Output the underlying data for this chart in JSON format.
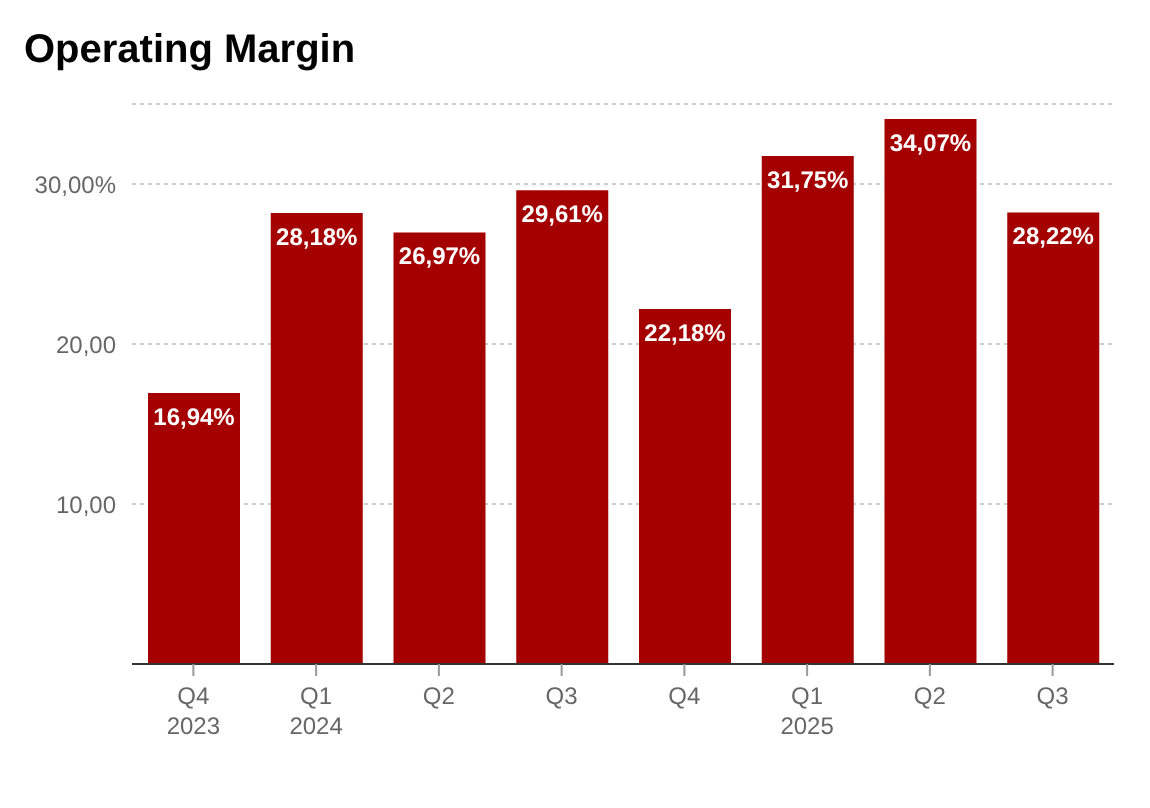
{
  "chart_data": {
    "type": "bar",
    "title": "Operating Margin",
    "categories": [
      "Q4\n2023",
      "Q1\n2024",
      "Q2",
      "Q3",
      "Q4",
      "Q1\n2025",
      "Q2",
      "Q3"
    ],
    "values": [
      16.94,
      28.18,
      26.97,
      29.61,
      22.18,
      31.75,
      34.07,
      28.22
    ],
    "value_labels": [
      "16,94%",
      "28,18%",
      "26,97%",
      "29,61%",
      "22,18%",
      "31,75%",
      "34,07%",
      "28,22%"
    ],
    "color": "#a50000",
    "ylim": [
      0,
      35
    ],
    "yticks": [
      {
        "value": 10,
        "label": "10,00"
      },
      {
        "value": 20,
        "label": "20,00"
      },
      {
        "value": 30,
        "label": "30,00%"
      }
    ],
    "grid": "y"
  }
}
